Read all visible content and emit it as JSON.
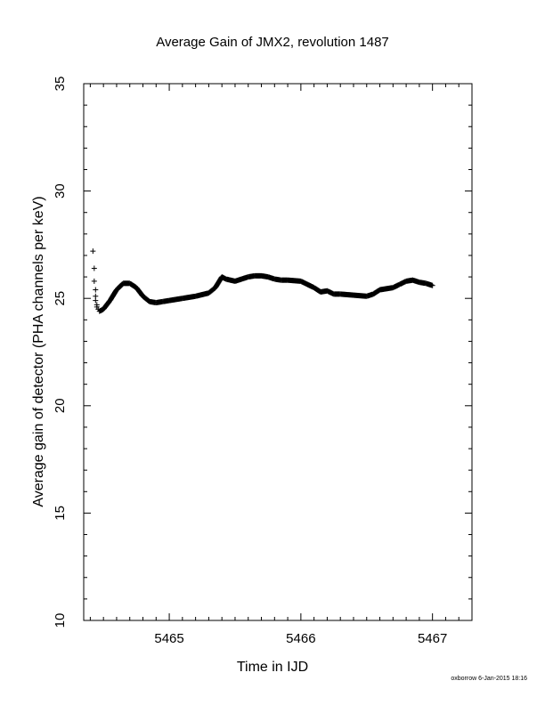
{
  "chart_data": {
    "type": "scatter",
    "title": "Average Gain of JMX2, revolution 1487",
    "xlabel": "Time in IJD",
    "ylabel": "Average gain of detector (PHA channels per keV)",
    "xlim": [
      5464.35,
      5467.3
    ],
    "ylim": [
      10,
      35
    ],
    "x_ticks": [
      5465,
      5466,
      5467
    ],
    "y_ticks": [
      10,
      15,
      20,
      25,
      30,
      35
    ],
    "x_tick_labels": [
      "5465",
      "5466",
      "5467"
    ],
    "y_tick_labels": [
      "10",
      "15",
      "20",
      "25",
      "30",
      "35"
    ],
    "grid": false,
    "legend": "none",
    "marker": "plus",
    "marker_color": "#000000",
    "series": [
      {
        "x": [
          5464.42,
          5464.43,
          5464.43,
          5464.44,
          5464.44,
          5464.44,
          5464.45,
          5464.45,
          5464.46,
          5464.47,
          5464.5,
          5464.55,
          5464.6,
          5464.65,
          5464.7,
          5464.75,
          5464.8,
          5464.85,
          5464.9,
          5464.95,
          5465.0,
          5465.1,
          5465.2,
          5465.3,
          5465.35,
          5465.4,
          5465.43,
          5465.5,
          5465.6,
          5465.65,
          5465.7,
          5465.75,
          5465.8,
          5465.85,
          5465.9,
          5466.0,
          5466.1,
          5466.15,
          5466.2,
          5466.25,
          5466.3,
          5466.4,
          5466.5,
          5466.55,
          5466.6,
          5466.7,
          5466.75,
          5466.8,
          5466.85,
          5466.9,
          5466.95,
          5467.0
        ],
        "y": [
          27.2,
          26.4,
          25.8,
          25.4,
          25.1,
          24.9,
          24.7,
          24.6,
          24.5,
          24.4,
          24.5,
          24.9,
          25.4,
          25.7,
          25.7,
          25.5,
          25.1,
          24.85,
          24.8,
          24.85,
          24.9,
          25.0,
          25.1,
          25.25,
          25.5,
          26.0,
          25.9,
          25.8,
          26.0,
          26.05,
          26.05,
          26.0,
          25.9,
          25.85,
          25.85,
          25.8,
          25.5,
          25.3,
          25.35,
          25.2,
          25.2,
          25.15,
          25.1,
          25.2,
          25.4,
          25.5,
          25.65,
          25.8,
          25.85,
          25.75,
          25.7,
          25.6
        ]
      }
    ]
  },
  "footer": {
    "credit": "oxborrow  6-Jan-2015 18:16"
  }
}
